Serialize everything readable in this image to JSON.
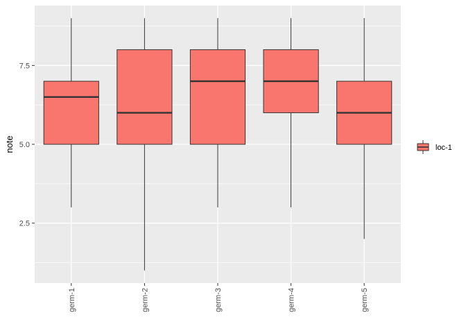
{
  "chart_data": {
    "type": "boxplot",
    "xlabel": "",
    "ylabel": "note",
    "categories": [
      "germ-1",
      "germ-2",
      "germ-3",
      "germ-4",
      "germ-5"
    ],
    "series": [
      {
        "name": "loc-1",
        "boxes": [
          {
            "category": "germ-1",
            "min": 3,
            "q1": 5,
            "median": 6.5,
            "q3": 7,
            "max": 9
          },
          {
            "category": "germ-2",
            "min": 1,
            "q1": 5,
            "median": 6,
            "q3": 8,
            "max": 9
          },
          {
            "category": "germ-3",
            "min": 3,
            "q1": 5,
            "median": 7,
            "q3": 8,
            "max": 9
          },
          {
            "category": "germ-4",
            "min": 3,
            "q1": 6,
            "median": 7,
            "q3": 8,
            "max": 9
          },
          {
            "category": "germ-5",
            "min": 2,
            "q1": 5,
            "median": 6,
            "q3": 7,
            "max": 9
          }
        ]
      }
    ],
    "ylim": [
      0.6,
      9.4
    ],
    "yticks": [
      2.5,
      5.0,
      7.5
    ],
    "ytick_labels": [
      "2.5",
      "5.0",
      "7.5"
    ],
    "grid": true,
    "legend_position": "right",
    "colors": {
      "panel": "#ebebeb",
      "grid_major": "#ffffff",
      "box_fill": "#f8766d",
      "box_stroke": "#333333"
    }
  }
}
